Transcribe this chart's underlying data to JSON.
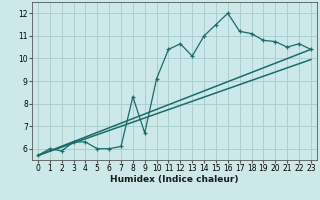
{
  "xlabel": "Humidex (Indice chaleur)",
  "xlim": [
    -0.5,
    23.5
  ],
  "ylim": [
    5.5,
    12.5
  ],
  "yticks": [
    6,
    7,
    8,
    9,
    10,
    11,
    12
  ],
  "xticks": [
    0,
    1,
    2,
    3,
    4,
    5,
    6,
    7,
    8,
    9,
    10,
    11,
    12,
    13,
    14,
    15,
    16,
    17,
    18,
    19,
    20,
    21,
    22,
    23
  ],
  "bg_color": "#cde8e8",
  "grid_color": "#aacece",
  "line_color": "#1a6b6b",
  "line1_x": [
    0,
    1,
    2,
    3,
    4,
    5,
    6,
    7,
    8,
    9,
    10,
    11,
    12,
    13,
    14,
    15,
    16,
    17,
    18,
    19,
    20,
    21,
    22,
    23
  ],
  "line1_y": [
    5.7,
    6.0,
    5.9,
    6.3,
    6.3,
    6.0,
    6.0,
    6.1,
    8.3,
    6.7,
    9.1,
    10.4,
    10.65,
    10.1,
    11.0,
    11.5,
    12.0,
    11.2,
    11.1,
    10.8,
    10.75,
    10.5,
    10.65,
    10.4
  ],
  "line2_x": [
    0,
    23
  ],
  "line2_y": [
    5.7,
    10.4
  ],
  "line3_x": [
    0,
    23
  ],
  "line3_y": [
    5.7,
    9.95
  ]
}
